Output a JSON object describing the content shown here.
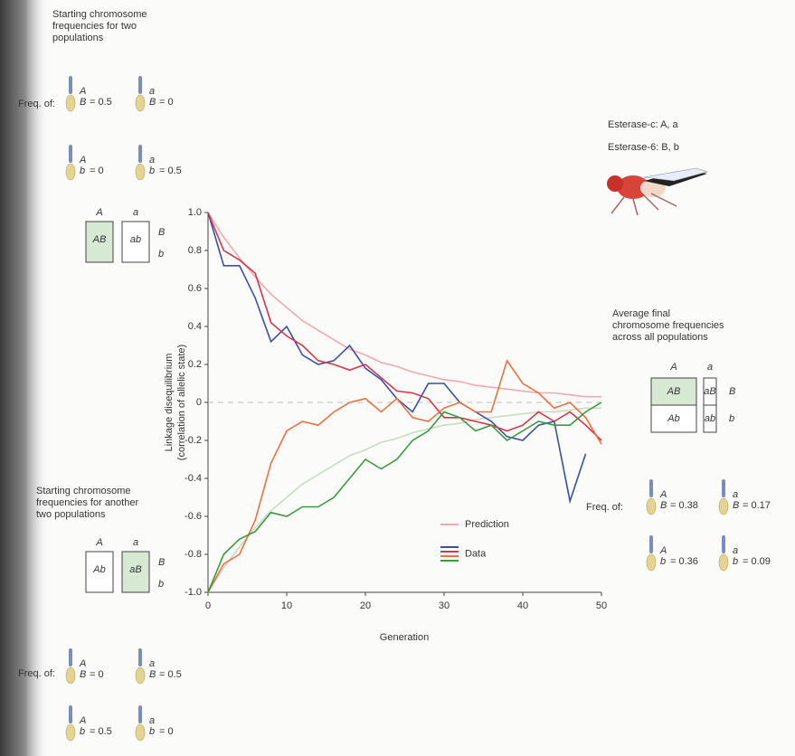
{
  "chart_data": {
    "type": "line",
    "xlabel": "Generation",
    "ylabel": [
      "Linkage disequilibrium",
      "(correlation of allelic state)"
    ],
    "x": [
      0,
      2,
      4,
      6,
      8,
      10,
      12,
      14,
      16,
      18,
      20,
      22,
      24,
      26,
      28,
      30,
      32,
      34,
      36,
      38,
      40,
      42,
      44,
      46,
      48,
      50
    ],
    "xlim": [
      0,
      50
    ],
    "xticks": [
      0,
      10,
      20,
      30,
      40,
      50
    ],
    "ylim": [
      -1,
      1
    ],
    "yticks": [
      {
        "value": 1,
        "label": "1.0"
      },
      0.8,
      0.6,
      0.4,
      0.2,
      0,
      -0.2,
      -0.4,
      -0.6,
      -0.8,
      {
        "value": -1,
        "label": "-1.0"
      }
    ],
    "series": [
      {
        "color": "#f2a8b0",
        "values": [
          1.0,
          0.87,
          0.76,
          0.66,
          0.57,
          0.5,
          0.43,
          0.38,
          0.33,
          0.28,
          0.25,
          0.21,
          0.19,
          0.16,
          0.14,
          0.12,
          0.11,
          0.09,
          0.08,
          0.07,
          0.06,
          0.05,
          0.05,
          0.04,
          0.03,
          0.03
        ]
      },
      {
        "color": "#c8dcc0",
        "values": [
          -1.0,
          -0.87,
          -0.76,
          -0.66,
          -0.57,
          -0.5,
          -0.43,
          -0.38,
          -0.33,
          -0.28,
          -0.25,
          -0.21,
          -0.19,
          -0.16,
          -0.14,
          -0.12,
          -0.11,
          -0.09,
          -0.08,
          -0.07,
          -0.06,
          -0.05,
          -0.05,
          -0.04,
          -0.03,
          -0.03
        ]
      },
      {
        "color": "#3b4fa0",
        "values": [
          1.0,
          0.72,
          0.72,
          0.55,
          0.32,
          0.4,
          0.25,
          0.2,
          0.22,
          0.3,
          0.18,
          0.12,
          0.02,
          -0.05,
          0.1,
          0.1,
          0.0,
          -0.05,
          -0.1,
          -0.18,
          -0.2,
          -0.12,
          -0.1,
          -0.52,
          -0.27,
          null
        ]
      },
      {
        "color": "#d8344a",
        "values": [
          1.0,
          0.8,
          0.75,
          0.68,
          0.42,
          0.35,
          0.3,
          0.22,
          0.2,
          0.17,
          0.2,
          0.13,
          0.06,
          0.05,
          0.02,
          -0.08,
          -0.08,
          -0.1,
          -0.12,
          -0.15,
          -0.12,
          -0.05,
          -0.1,
          -0.05,
          -0.12,
          -0.2
        ]
      },
      {
        "color": "#f07040",
        "values": [
          -1.0,
          -0.85,
          -0.8,
          -0.62,
          -0.32,
          -0.15,
          -0.1,
          -0.12,
          -0.05,
          0.0,
          0.02,
          -0.05,
          0.02,
          -0.08,
          -0.1,
          -0.03,
          0.0,
          -0.05,
          -0.05,
          0.22,
          0.1,
          0.05,
          -0.03,
          0.0,
          -0.08,
          -0.22
        ]
      },
      {
        "color": "#3a9a40",
        "values": [
          -1.0,
          -0.8,
          -0.72,
          -0.68,
          -0.58,
          -0.6,
          -0.55,
          -0.55,
          -0.5,
          -0.4,
          -0.3,
          -0.35,
          -0.3,
          -0.2,
          -0.15,
          -0.05,
          -0.08,
          -0.15,
          -0.12,
          -0.2,
          -0.15,
          -0.1,
          -0.12,
          -0.12,
          -0.05,
          0.0
        ]
      }
    ],
    "legend": [
      {
        "label": "Prediction",
        "colors": [
          "#f2a8b0"
        ]
      },
      {
        "label": "Data",
        "colors": [
          "#3b4fa0",
          "#d8344a",
          "#f07040",
          "#3a9a40"
        ]
      }
    ],
    "species": [
      "Esterase-c: A, a",
      "Esterase-6: B, b"
    ],
    "panels": [
      {
        "title": [
          "Starting chromosome",
          "frequencies for two",
          "populations"
        ],
        "columns": [
          "A",
          "a"
        ],
        "rows": [
          "B",
          "b"
        ],
        "cells": [
          "AB",
          "ab"
        ],
        "freq_label": "Freq. of:",
        "items": [
          {
            "top": "A",
            "bottom": "B",
            "value": 0.5,
            "value_label": "= 0.5"
          },
          {
            "top": "a",
            "bottom": "B",
            "value": 0,
            "value_label": "= 0"
          },
          {
            "top": "A",
            "bottom": "b",
            "value": 0,
            "value_label": "= 0"
          },
          {
            "top": "a",
            "bottom": "b",
            "value": 0.5,
            "value_label": "= 0.5"
          }
        ]
      },
      {
        "title": [
          "Average final",
          "chromosome frequencies",
          "across all populations"
        ],
        "columns": [
          "A",
          "a"
        ],
        "rows": [
          "B",
          "b"
        ],
        "cells": [
          "AB",
          "Ab",
          "aB",
          "ab"
        ],
        "freq_label": "Freq. of:",
        "items": [
          {
            "top": "A",
            "bottom": "B",
            "value": 0.38,
            "value_label": "= 0.38"
          },
          {
            "top": "a",
            "bottom": "B",
            "value": 0.17,
            "value_label": "= 0.17"
          },
          {
            "top": "A",
            "bottom": "b",
            "value": 0.36,
            "value_label": "= 0.36"
          },
          {
            "top": "a",
            "bottom": "b",
            "value": 0.09,
            "value_label": "= 0.09"
          }
        ]
      },
      {
        "title": [
          "Starting chromosome",
          "frequencies for another",
          "two populations"
        ],
        "columns": [
          "A",
          "a"
        ],
        "rows": [
          "B",
          "b"
        ],
        "cells": [
          "Ab",
          "aB"
        ],
        "freq_label": "Freq. of:",
        "items": [
          {
            "top": "A",
            "bottom": "B",
            "value": 0,
            "value_label": "= 0"
          },
          {
            "top": "a",
            "bottom": "B",
            "value": 0.5,
            "value_label": "= 0.5"
          },
          {
            "top": "A",
            "bottom": "b",
            "value": 0.5,
            "value_label": "= 0.5"
          },
          {
            "top": "a",
            "bottom": "b",
            "value": 0,
            "value_label": "= 0"
          }
        ]
      }
    ]
  }
}
